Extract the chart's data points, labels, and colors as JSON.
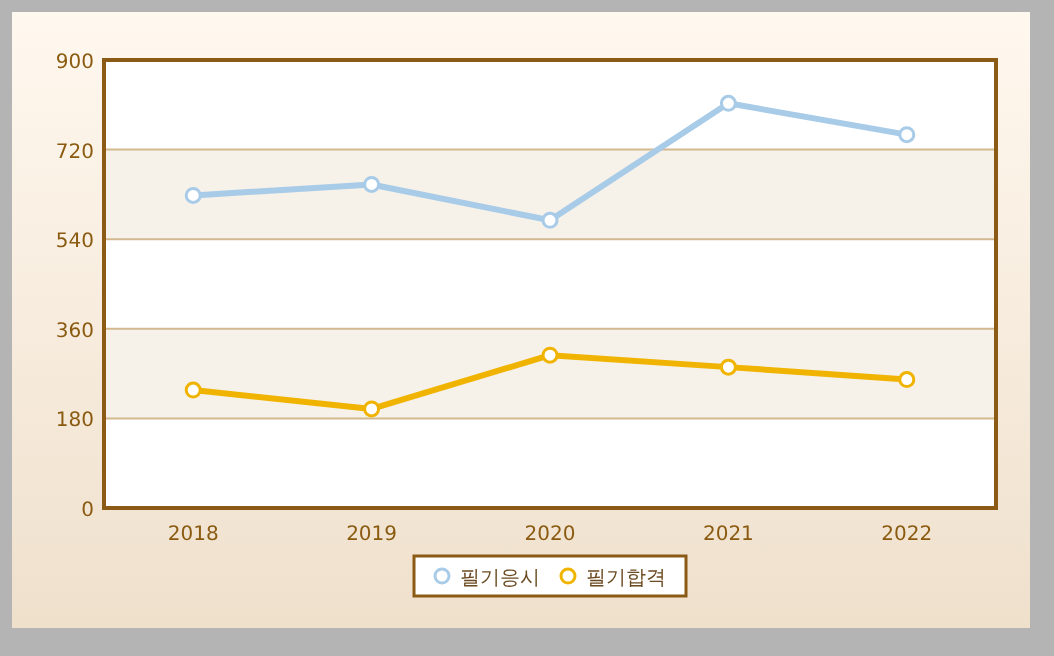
{
  "chart_data": {
    "type": "line",
    "categories": [
      "2018",
      "2019",
      "2020",
      "2021",
      "2022"
    ],
    "series": [
      {
        "name": "필기응시",
        "color": "#a8cbe8",
        "values": [
          628,
          650,
          578,
          813,
          750
        ]
      },
      {
        "name": "필기합격",
        "color": "#f0b400",
        "values": [
          237,
          199,
          307,
          283,
          258
        ]
      }
    ],
    "ylim": [
      0,
      900
    ],
    "yticks": [
      0,
      180,
      360,
      540,
      720,
      900
    ],
    "grid": "y",
    "legend": "bottom",
    "marker": "circle",
    "line_style": "solid"
  }
}
